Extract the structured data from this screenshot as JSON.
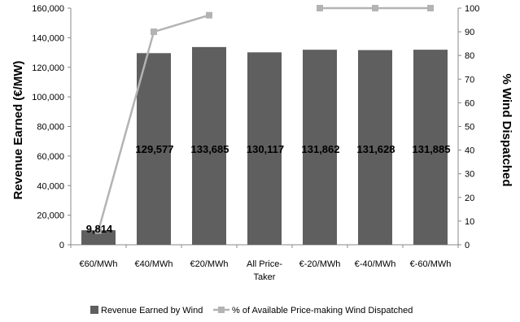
{
  "chart_data": {
    "type": "bar",
    "categories": [
      "€60/MWh",
      "€40/MWh",
      "€20/MWh",
      "All Price-Taker",
      "€-20/MWh",
      "€-40/MWh",
      "€-60/MWh"
    ],
    "category_lines": [
      [
        "€60/MWh"
      ],
      [
        "€40/MWh"
      ],
      [
        "€20/MWh"
      ],
      [
        "All Price-",
        "Taker"
      ],
      [
        "€-20/MWh"
      ],
      [
        "€-40/MWh"
      ],
      [
        "€-60/MWh"
      ]
    ],
    "series": [
      {
        "name": "Revenue Earned by Wind",
        "type": "bar",
        "axis": "left",
        "color": "#5f5f5f",
        "values": [
          9814,
          129577,
          133685,
          130117,
          131862,
          131628,
          131885
        ],
        "data_labels": [
          "9,814",
          "129,577",
          "133,685",
          "130,117",
          "131,862",
          "131,628",
          "131,885"
        ]
      },
      {
        "name": "% of Available Price-making Wind Dispatched",
        "type": "line",
        "axis": "right",
        "color": "#b3b3b3",
        "values": [
          6,
          90,
          97,
          null,
          100,
          100,
          100
        ]
      }
    ],
    "ylabel": "Revenue Earned (€/MW)",
    "y2label": "% Wind Dispatched",
    "ylim": [
      0,
      160000
    ],
    "y2lim": [
      0,
      100
    ],
    "yticks": [
      "0",
      "20,000",
      "40,000",
      "60,000",
      "80,000",
      "100,000",
      "120,000",
      "140,000",
      "160,000"
    ],
    "y2ticks": [
      "0",
      "10",
      "20",
      "30",
      "40",
      "50",
      "60",
      "70",
      "80",
      "90",
      "100"
    ],
    "legend_position": "bottom",
    "grid": false
  }
}
